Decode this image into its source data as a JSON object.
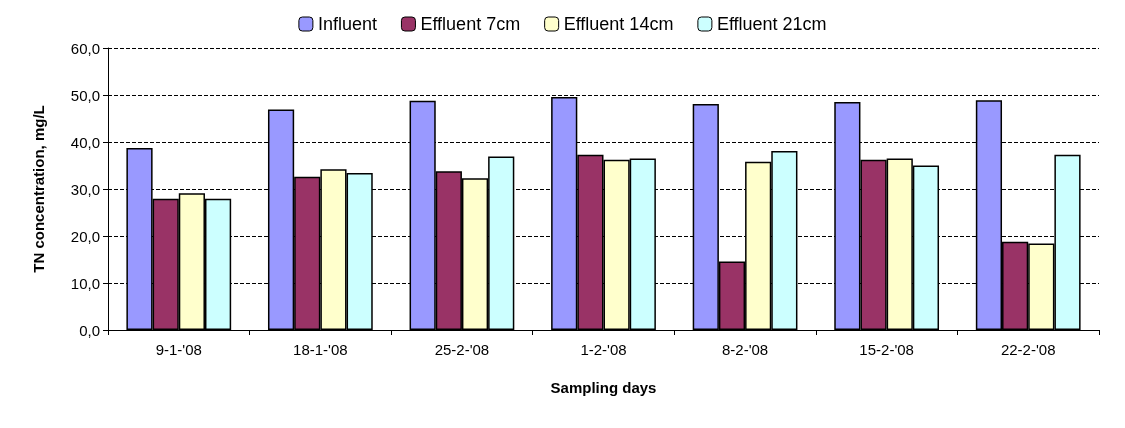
{
  "chart_data": {
    "type": "bar",
    "xlabel": "Sampling days",
    "ylabel": "TN concentration, mg/L",
    "categories": [
      "9-1-'08",
      "18-1-'08",
      "25-2-'08",
      "1-2-'08",
      "8-2-'08",
      "15-2-'08",
      "22-2-'08"
    ],
    "series": [
      {
        "name": "Influent",
        "color": "#9999ff",
        "values": [
          38.7,
          46.9,
          48.8,
          49.6,
          48.1,
          48.5,
          48.9
        ]
      },
      {
        "name": "Effluent 7cm",
        "color": "#993366",
        "values": [
          27.9,
          32.6,
          33.8,
          37.3,
          14.6,
          36.2,
          18.8
        ]
      },
      {
        "name": "Effluent 14cm",
        "color": "#ffffcc",
        "values": [
          29.1,
          34.2,
          32.3,
          36.2,
          35.8,
          36.5,
          18.4
        ]
      },
      {
        "name": "Effluent 21cm",
        "color": "#ccffff",
        "values": [
          27.9,
          33.4,
          36.9,
          36.5,
          38.1,
          35.0,
          37.3
        ]
      }
    ],
    "ylim": [
      0,
      60
    ],
    "yticks": [
      {
        "value": 0,
        "label": "0,0"
      },
      {
        "value": 10,
        "label": "10,0"
      },
      {
        "value": 20,
        "label": "20,0"
      },
      {
        "value": 30,
        "label": "30,0"
      },
      {
        "value": 40,
        "label": "40,0"
      },
      {
        "value": 50,
        "label": "50,0"
      },
      {
        "value": 60,
        "label": "60,0"
      }
    ],
    "grid": "y",
    "legend": "top"
  }
}
